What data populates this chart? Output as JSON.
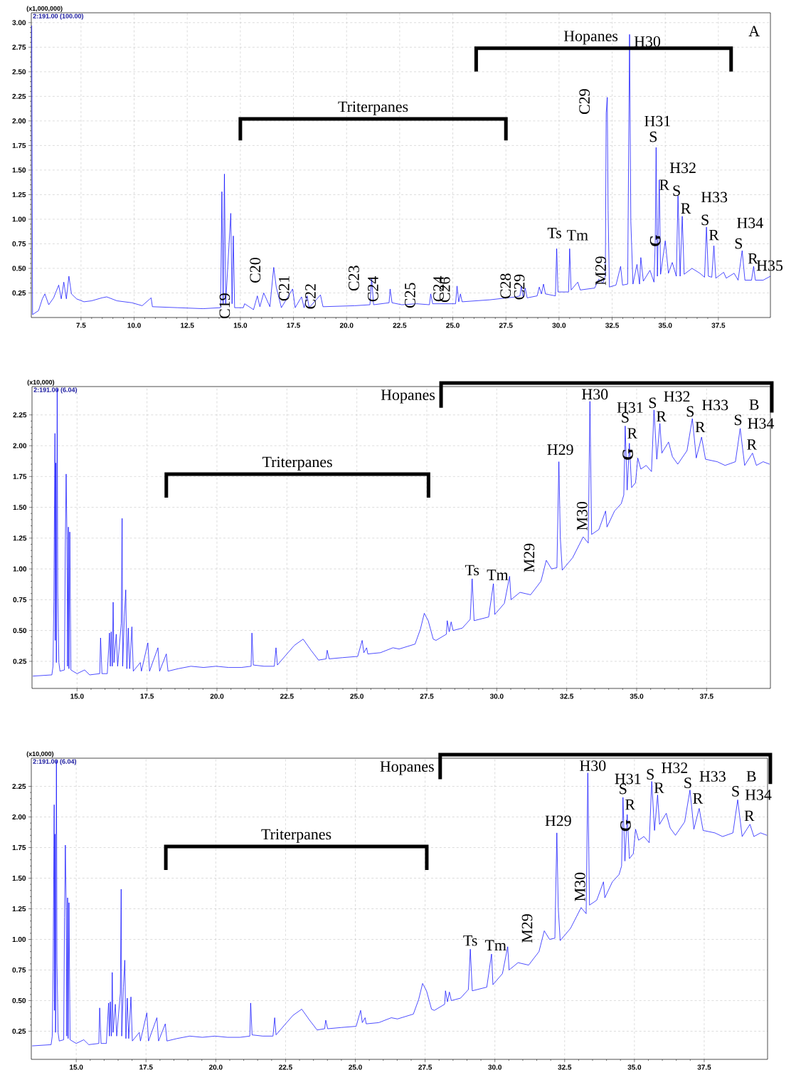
{
  "chart_data": [
    {
      "type": "line",
      "xlim": [
        5.16,
        39.95
      ],
      "ylim": [
        0.0,
        3.1
      ],
      "grid": true,
      "xticks": [
        {
          "value": 7.5,
          "label": "7.5"
        },
        {
          "value": 10,
          "label": "10.0"
        },
        {
          "value": 12.5,
          "label": "12.5"
        },
        {
          "value": 15,
          "label": "15.0"
        },
        {
          "value": 17.5,
          "label": "17.5"
        },
        {
          "value": 20,
          "label": "20.0"
        },
        {
          "value": 22.5,
          "label": "22.5"
        },
        {
          "value": 25,
          "label": "25.0"
        },
        {
          "value": 27.5,
          "label": "27.5"
        },
        {
          "value": 30,
          "label": "30.0"
        },
        {
          "value": 32.5,
          "label": "32.5"
        },
        {
          "value": 35,
          "label": "35.0"
        },
        {
          "value": 37.5,
          "label": "37.5"
        }
      ],
      "yticks": [
        {
          "value": 0.25,
          "label": "0.25"
        },
        {
          "value": 0.5,
          "label": "0.50"
        },
        {
          "value": 0.75,
          "label": "0.75"
        },
        {
          "value": 1,
          "label": "1.00"
        },
        {
          "value": 1.25,
          "label": "1.25"
        },
        {
          "value": 1.5,
          "label": "1.50"
        },
        {
          "value": 1.75,
          "label": "1.75"
        },
        {
          "value": 2,
          "label": "2.00"
        },
        {
          "value": 2.25,
          "label": "2.25"
        },
        {
          "value": 2.5,
          "label": "2.50"
        },
        {
          "value": 2.75,
          "label": "2.75"
        },
        {
          "value": 3,
          "label": "3.00"
        }
      ],
      "series": [
        {
          "color": "#0000ff",
          "x": [
            5.18,
            5.22,
            5.5,
            5.68,
            5.8,
            5.98,
            6.21,
            6.45,
            6.57,
            6.69,
            6.81,
            6.93,
            7.05,
            7.29,
            7.64,
            8.0,
            8.48,
            8.71,
            9.19,
            9.9,
            10.38,
            10.8,
            10.86,
            12.05,
            13.24,
            14.07,
            14.13,
            14.19,
            14.25,
            14.31,
            14.55,
            14.61,
            14.67,
            14.73,
            15.14,
            15.2,
            15.62,
            15.8,
            15.92,
            16.1,
            16.39,
            16.57,
            16.69,
            16.93,
            17.46,
            17.58,
            17.88,
            18.0,
            18.14,
            18.24,
            18.77,
            18.89,
            20.38,
            21.1,
            21.18,
            21.27,
            22.0,
            22.05,
            22.14,
            22.6,
            23.3,
            23.9,
            23.96,
            24.05,
            25.13,
            25.2,
            25.28,
            25.36,
            25.44,
            26.74,
            27.98,
            28.16,
            28.22,
            28.31,
            28.41,
            28.5,
            28.97,
            29.07,
            29.17,
            29.27,
            29.36,
            29.83,
            29.89,
            29.95,
            30.45,
            30.5,
            30.57,
            30.88,
            31.0,
            31.68,
            31.87,
            32.06,
            32.18,
            32.22,
            32.27,
            32.31,
            32.37,
            32.68,
            32.9,
            32.99,
            33.23,
            33.32,
            33.38,
            33.48,
            33.67,
            33.79,
            33.85,
            33.97,
            34.28,
            34.47,
            34.53,
            34.57,
            34.63,
            34.72,
            34.78,
            35.0,
            35.15,
            35.33,
            35.52,
            35.6,
            35.7,
            35.8,
            35.89,
            36.26,
            36.63,
            36.85,
            36.94,
            37.03,
            37.19,
            37.29,
            37.38,
            37.75,
            37.87,
            38.24,
            38.43,
            38.62,
            38.75,
            39.06,
            39.16,
            39.24,
            39.61,
            39.95
          ],
          "values": [
            2.97,
            0.03,
            0.07,
            0.19,
            0.24,
            0.13,
            0.2,
            0.33,
            0.19,
            0.36,
            0.19,
            0.42,
            0.24,
            0.19,
            0.16,
            0.17,
            0.2,
            0.21,
            0.17,
            0.15,
            0.12,
            0.2,
            0.11,
            0.1,
            0.09,
            0.1,
            1.28,
            0.14,
            1.46,
            0.14,
            1.06,
            0.14,
            0.83,
            0.1,
            0.1,
            0.14,
            0.08,
            0.22,
            0.11,
            0.25,
            0.11,
            0.51,
            0.31,
            0.1,
            0.29,
            0.1,
            0.21,
            0.1,
            0.22,
            0.1,
            0.23,
            0.11,
            0.12,
            0.13,
            0.4,
            0.13,
            0.15,
            0.29,
            0.15,
            0.13,
            0.14,
            0.13,
            0.24,
            0.14,
            0.14,
            0.32,
            0.16,
            0.24,
            0.16,
            0.18,
            0.21,
            0.22,
            0.32,
            0.21,
            0.3,
            0.2,
            0.22,
            0.31,
            0.24,
            0.34,
            0.24,
            0.22,
            0.7,
            0.26,
            0.26,
            0.7,
            0.28,
            0.36,
            0.28,
            0.3,
            0.39,
            0.35,
            0.42,
            2.08,
            2.24,
            1.09,
            0.31,
            0.33,
            0.52,
            0.33,
            0.34,
            2.88,
            0.98,
            0.34,
            0.54,
            0.34,
            0.61,
            0.37,
            0.48,
            0.36,
            0.78,
            1.73,
            0.42,
            1.4,
            0.44,
            0.78,
            0.45,
            0.56,
            0.42,
            1.24,
            0.42,
            1.03,
            0.44,
            0.5,
            0.45,
            0.41,
            0.92,
            0.42,
            0.41,
            0.73,
            0.4,
            0.46,
            0.4,
            0.45,
            0.38,
            0.68,
            0.38,
            0.38,
            0.52,
            0.38,
            0.38,
            0.42
          ]
        }
      ],
      "annotations": [
        "(x1,000,000)",
        "2:191.00 (100.00)",
        "A",
        {
          "text": "C19",
          "x": 15.2,
          "y": 0.14
        },
        {
          "text": "C20",
          "x": 16.57,
          "y": 0.51
        },
        {
          "text": "C21",
          "x": 17.46,
          "y": 0.29
        },
        {
          "text": "C22",
          "x": 18.77,
          "y": 0.23
        },
        {
          "text": "C23",
          "x": 21.18,
          "y": 0.4
        },
        {
          "text": "C24",
          "x": 22.05,
          "y": 0.29
        },
        {
          "text": "C25",
          "x": 23.96,
          "y": 0.24
        },
        {
          "text": "C24",
          "x": 25.2,
          "y": 0.32
        },
        {
          "text": "C26",
          "x": 25.36,
          "y": 0.24
        },
        {
          "text": "C28",
          "x": 28.22,
          "y": 0.32
        },
        {
          "text": "C29",
          "x": 29.07,
          "y": 0.31
        },
        {
          "text": "Ts",
          "x": 29.89,
          "y": 0.7
        },
        {
          "text": "Tm",
          "x": 30.5,
          "y": 0.7
        },
        {
          "text": "C29",
          "x": 32.27,
          "y": 2.24
        },
        {
          "text": "M29",
          "x": 32.9,
          "y": 0.52
        },
        {
          "text": "H30",
          "x": 33.32,
          "y": 2.88
        },
        {
          "text": "H31",
          "x": 34.57,
          "y": 1.73
        },
        {
          "text": "S",
          "x": 34.57,
          "y": 1.73
        },
        {
          "text": "R",
          "x": 34.72,
          "y": 1.4
        },
        {
          "text": "G",
          "x": 35.0,
          "y": 0.78
        },
        {
          "text": "H32",
          "x": 35.6,
          "y": 1.24
        },
        {
          "text": "S",
          "x": 35.6,
          "y": 1.24
        },
        {
          "text": "R",
          "x": 35.8,
          "y": 1.03
        },
        {
          "text": "H33",
          "x": 36.94,
          "y": 0.92
        },
        {
          "text": "S",
          "x": 36.94,
          "y": 0.92
        },
        {
          "text": "R",
          "x": 37.29,
          "y": 0.73
        },
        {
          "text": "H34",
          "x": 38.62,
          "y": 0.68
        },
        {
          "text": "S",
          "x": 38.62,
          "y": 0.68
        },
        {
          "text": "R",
          "x": 39.16,
          "y": 0.52
        },
        {
          "text": "H35",
          "x": 39.95,
          "y": 0.42
        },
        "Triterpanes",
        "Hopanes"
      ]
    },
    {
      "type": "line",
      "xlim": [
        13.39,
        39.78
      ],
      "ylim": [
        0.03,
        2.48
      ],
      "grid": true,
      "xticks": [
        {
          "value": 15,
          "label": "15.0"
        },
        {
          "value": 17.5,
          "label": "17.5"
        },
        {
          "value": 20,
          "label": "20.0"
        },
        {
          "value": 22.5,
          "label": "22.5"
        },
        {
          "value": 25,
          "label": "25.0"
        },
        {
          "value": 27.5,
          "label": "27.5"
        },
        {
          "value": 30,
          "label": "30.0"
        },
        {
          "value": 32.5,
          "label": "32.5"
        },
        {
          "value": 35,
          "label": "35.0"
        },
        {
          "value": 37.5,
          "label": "37.5"
        }
      ],
      "yticks": [
        {
          "value": 0.25,
          "label": "0.25"
        },
        {
          "value": 0.5,
          "label": "0.50"
        },
        {
          "value": 0.75,
          "label": "0.75"
        },
        {
          "value": 1,
          "label": "1.00"
        },
        {
          "value": 1.25,
          "label": "1.25"
        },
        {
          "value": 1.5,
          "label": "1.50"
        },
        {
          "value": 1.75,
          "label": "1.75"
        },
        {
          "value": 2,
          "label": "2.00"
        },
        {
          "value": 2.25,
          "label": "2.25"
        }
      ],
      "series": [
        {
          "color": "#0000ff",
          "x": [
            13.42,
            14.1,
            14.14,
            14.17,
            14.21,
            14.22,
            14.24,
            14.26,
            14.29,
            14.31,
            14.35,
            14.39,
            14.55,
            14.58,
            14.61,
            14.64,
            14.66,
            14.69,
            14.71,
            14.74,
            14.78,
            15.0,
            15.27,
            15.45,
            15.81,
            15.84,
            15.89,
            16.08,
            16.16,
            16.19,
            16.22,
            16.26,
            16.29,
            16.32,
            16.4,
            16.45,
            16.58,
            16.61,
            16.63,
            16.69,
            16.74,
            16.78,
            16.83,
            16.88,
            16.96,
            17.01,
            17.26,
            17.3,
            17.53,
            17.59,
            17.89,
            17.95,
            18.19,
            18.25,
            18.61,
            19.07,
            19.52,
            19.97,
            20.42,
            20.87,
            21.22,
            21.25,
            21.3,
            21.68,
            22.05,
            22.11,
            22.16,
            22.5,
            22.77,
            23.08,
            23.36,
            23.63,
            23.9,
            23.94,
            24.01,
            24.49,
            25.03,
            25.19,
            25.25,
            25.35,
            25.39,
            25.84,
            26.29,
            26.51,
            27.08,
            27.27,
            27.41,
            27.55,
            27.73,
            27.83,
            28.2,
            28.23,
            28.3,
            28.37,
            28.44,
            28.77,
            29.05,
            29.12,
            29.19,
            29.71,
            29.88,
            29.93,
            30.27,
            30.46,
            30.51,
            30.83,
            31.21,
            31.58,
            31.77,
            31.96,
            32.15,
            32.22,
            32.27,
            32.34,
            32.71,
            33.09,
            33.27,
            33.33,
            33.39,
            33.65,
            33.89,
            33.94,
            34.21,
            34.45,
            34.54,
            34.59,
            34.66,
            34.74,
            34.82,
            34.96,
            35.04,
            35.15,
            35.34,
            35.53,
            35.62,
            35.72,
            35.83,
            35.9,
            36.14,
            36.28,
            36.47,
            36.8,
            36.99,
            37.13,
            37.32,
            37.46,
            37.88,
            38.16,
            38.53,
            38.7,
            38.86,
            39.14,
            39.28,
            39.52,
            39.75
          ],
          "values": [
            0.13,
            0.14,
            0.21,
            0.73,
            2.1,
            0.42,
            1.86,
            0.24,
            2.46,
            0.81,
            0.24,
            0.17,
            0.18,
            1.18,
            1.77,
            1.26,
            0.21,
            1.34,
            0.19,
            1.3,
            0.18,
            0.15,
            0.18,
            0.14,
            0.15,
            0.44,
            0.15,
            0.15,
            0.48,
            0.21,
            0.49,
            0.21,
            0.73,
            0.24,
            0.47,
            0.21,
            0.56,
            1.41,
            0.21,
            0.61,
            0.83,
            0.19,
            0.52,
            0.19,
            0.53,
            0.17,
            0.24,
            0.17,
            0.4,
            0.17,
            0.36,
            0.17,
            0.31,
            0.17,
            0.19,
            0.21,
            0.2,
            0.21,
            0.2,
            0.2,
            0.21,
            0.48,
            0.22,
            0.21,
            0.21,
            0.36,
            0.22,
            0.31,
            0.38,
            0.43,
            0.34,
            0.26,
            0.27,
            0.34,
            0.27,
            0.28,
            0.29,
            0.42,
            0.32,
            0.36,
            0.31,
            0.32,
            0.36,
            0.35,
            0.39,
            0.51,
            0.64,
            0.58,
            0.43,
            0.42,
            0.47,
            0.58,
            0.49,
            0.57,
            0.5,
            0.52,
            0.59,
            0.92,
            0.58,
            0.61,
            0.88,
            0.63,
            0.72,
            0.94,
            0.75,
            0.81,
            0.79,
            0.9,
            1.07,
            1.0,
            1.01,
            1.87,
            1.26,
            0.99,
            1.09,
            1.26,
            1.21,
            2.36,
            1.28,
            1.32,
            1.47,
            1.34,
            1.47,
            1.53,
            1.6,
            2.16,
            1.64,
            2.02,
            1.66,
            1.7,
            1.9,
            1.81,
            1.84,
            1.79,
            2.29,
            1.89,
            2.18,
            1.94,
            2.03,
            1.91,
            1.85,
            1.96,
            2.22,
            1.9,
            2.07,
            1.89,
            1.87,
            1.84,
            1.87,
            2.14,
            1.84,
            1.94,
            1.84,
            1.87,
            1.85
          ]
        }
      ],
      "annotations": [
        "(x10,000)",
        "2:191.00 (6.04)",
        "B",
        {
          "text": "H29",
          "x": 32.22,
          "y": 1.87
        },
        {
          "text": "M29",
          "x": 32.71,
          "y": 1.09
        },
        {
          "text": "H30",
          "x": 33.33,
          "y": 2.36
        },
        {
          "text": "M30",
          "x": 33.89,
          "y": 1.47
        },
        {
          "text": "Ts",
          "x": 29.12,
          "y": 0.92
        },
        {
          "text": "Tm",
          "x": 30.46,
          "y": 0.94
        },
        {
          "text": "H31",
          "x": 34.59,
          "y": 2.16
        },
        {
          "text": "S",
          "x": 34.59,
          "y": 2.16
        },
        {
          "text": "R",
          "x": 34.74,
          "y": 2.02
        },
        {
          "text": "G",
          "x": 35.04,
          "y": 1.9
        },
        {
          "text": "S",
          "x": 35.62,
          "y": 2.29
        },
        {
          "text": "H32",
          "x": 35.83,
          "y": 2.18
        },
        {
          "text": "R",
          "x": 35.83,
          "y": 2.18
        },
        {
          "text": "S",
          "x": 36.99,
          "y": 2.22
        },
        {
          "text": "H33",
          "x": 37.32,
          "y": 2.07
        },
        {
          "text": "R",
          "x": 37.32,
          "y": 2.07
        },
        {
          "text": "S",
          "x": 38.7,
          "y": 2.14
        },
        {
          "text": "H34",
          "x": 38.7,
          "y": 2.14
        },
        {
          "text": "R",
          "x": 39.14,
          "y": 1.94
        },
        "Triterpanes",
        "Hopanes"
      ]
    },
    {
      "type": "line",
      "xlim": [
        13.39,
        39.77
      ],
      "ylim": [
        0.02,
        2.48
      ],
      "grid": true,
      "xticks": [
        {
          "value": 15,
          "label": "15.0"
        },
        {
          "value": 17.5,
          "label": "17.5"
        },
        {
          "value": 20,
          "label": "20.0"
        },
        {
          "value": 22.5,
          "label": "22.5"
        },
        {
          "value": 25,
          "label": "25.0"
        },
        {
          "value": 27.5,
          "label": "27.5"
        },
        {
          "value": 30,
          "label": "30.0"
        },
        {
          "value": 32.5,
          "label": "32.5"
        },
        {
          "value": 35,
          "label": "35.0"
        },
        {
          "value": 37.5,
          "label": "37.5"
        }
      ],
      "yticks": [
        {
          "value": 0.25,
          "label": "0.25"
        },
        {
          "value": 0.5,
          "label": "0.50"
        },
        {
          "value": 0.75,
          "label": "0.75"
        },
        {
          "value": 1,
          "label": "1.00"
        },
        {
          "value": 1.25,
          "label": "1.25"
        },
        {
          "value": 1.5,
          "label": "1.50"
        },
        {
          "value": 1.75,
          "label": "1.75"
        },
        {
          "value": 2,
          "label": "2.00"
        },
        {
          "value": 2.25,
          "label": "2.25"
        }
      ],
      "series": [
        {
          "color": "#0000ff",
          "x": [
            13.42,
            14.1,
            14.14,
            14.17,
            14.21,
            14.22,
            14.24,
            14.26,
            14.29,
            14.31,
            14.35,
            14.39,
            14.55,
            14.58,
            14.61,
            14.64,
            14.66,
            14.69,
            14.71,
            14.74,
            14.78,
            15.0,
            15.27,
            15.45,
            15.81,
            15.84,
            15.89,
            16.08,
            16.16,
            16.19,
            16.22,
            16.26,
            16.29,
            16.32,
            16.4,
            16.45,
            16.58,
            16.61,
            16.63,
            16.69,
            16.74,
            16.78,
            16.83,
            16.88,
            16.96,
            17.01,
            17.26,
            17.3,
            17.53,
            17.59,
            17.89,
            17.95,
            18.19,
            18.25,
            18.61,
            19.07,
            19.52,
            19.97,
            20.42,
            20.87,
            21.22,
            21.25,
            21.3,
            21.68,
            22.05,
            22.11,
            22.16,
            22.5,
            22.77,
            23.08,
            23.36,
            23.63,
            23.9,
            23.94,
            24.01,
            24.49,
            25.03,
            25.19,
            25.25,
            25.35,
            25.39,
            25.84,
            26.29,
            26.51,
            27.08,
            27.27,
            27.41,
            27.55,
            27.73,
            27.83,
            28.2,
            28.23,
            28.3,
            28.37,
            28.44,
            28.77,
            29.05,
            29.12,
            29.19,
            29.71,
            29.88,
            29.93,
            30.27,
            30.46,
            30.51,
            30.83,
            31.21,
            31.58,
            31.77,
            31.96,
            32.15,
            32.22,
            32.27,
            32.34,
            32.71,
            33.09,
            33.27,
            33.33,
            33.39,
            33.65,
            33.89,
            33.94,
            34.21,
            34.45,
            34.54,
            34.59,
            34.66,
            34.74,
            34.82,
            34.96,
            35.04,
            35.15,
            35.34,
            35.53,
            35.62,
            35.72,
            35.83,
            35.9,
            36.14,
            36.28,
            36.47,
            36.8,
            36.99,
            37.13,
            37.32,
            37.46,
            37.88,
            38.16,
            38.53,
            38.7,
            38.86,
            39.14,
            39.28,
            39.52,
            39.75
          ],
          "values": [
            0.13,
            0.14,
            0.21,
            0.73,
            2.1,
            0.42,
            1.86,
            0.24,
            2.46,
            0.81,
            0.24,
            0.17,
            0.18,
            1.18,
            1.77,
            1.26,
            0.21,
            1.34,
            0.19,
            1.3,
            0.18,
            0.15,
            0.18,
            0.14,
            0.15,
            0.44,
            0.15,
            0.15,
            0.48,
            0.21,
            0.49,
            0.21,
            0.73,
            0.24,
            0.47,
            0.21,
            0.56,
            1.41,
            0.21,
            0.61,
            0.83,
            0.19,
            0.52,
            0.19,
            0.53,
            0.17,
            0.24,
            0.17,
            0.4,
            0.17,
            0.36,
            0.17,
            0.31,
            0.17,
            0.19,
            0.21,
            0.2,
            0.21,
            0.2,
            0.2,
            0.21,
            0.48,
            0.22,
            0.21,
            0.21,
            0.36,
            0.22,
            0.31,
            0.38,
            0.43,
            0.34,
            0.26,
            0.27,
            0.34,
            0.27,
            0.28,
            0.29,
            0.42,
            0.32,
            0.36,
            0.31,
            0.32,
            0.36,
            0.35,
            0.39,
            0.51,
            0.64,
            0.58,
            0.43,
            0.42,
            0.47,
            0.58,
            0.49,
            0.57,
            0.5,
            0.52,
            0.59,
            0.92,
            0.58,
            0.61,
            0.88,
            0.63,
            0.72,
            0.94,
            0.75,
            0.81,
            0.79,
            0.9,
            1.07,
            1.0,
            1.01,
            1.87,
            1.26,
            0.99,
            1.09,
            1.26,
            1.21,
            2.36,
            1.28,
            1.32,
            1.47,
            1.34,
            1.47,
            1.53,
            1.6,
            2.16,
            1.64,
            2.02,
            1.66,
            1.7,
            1.9,
            1.81,
            1.84,
            1.79,
            2.29,
            1.89,
            2.18,
            1.94,
            2.03,
            1.91,
            1.85,
            1.96,
            2.22,
            1.9,
            2.07,
            1.89,
            1.87,
            1.84,
            1.87,
            2.14,
            1.84,
            1.94,
            1.84,
            1.87,
            1.85
          ]
        }
      ],
      "annotations": [
        "(x10,000)",
        "2:191.00 (6.04)",
        "B",
        {
          "text": "H29",
          "x": 32.22,
          "y": 1.87
        },
        {
          "text": "M29",
          "x": 32.71,
          "y": 1.09
        },
        {
          "text": "H30",
          "x": 33.33,
          "y": 2.36
        },
        {
          "text": "M30",
          "x": 33.89,
          "y": 1.47
        },
        {
          "text": "Ts",
          "x": 29.12,
          "y": 0.92
        },
        {
          "text": "Tm",
          "x": 30.46,
          "y": 0.94
        },
        {
          "text": "H31",
          "x": 34.59,
          "y": 2.16
        },
        {
          "text": "S",
          "x": 34.59,
          "y": 2.16
        },
        {
          "text": "R",
          "x": 34.74,
          "y": 2.02
        },
        {
          "text": "G",
          "x": 35.04,
          "y": 1.9
        },
        {
          "text": "S",
          "x": 35.62,
          "y": 2.29
        },
        {
          "text": "H32",
          "x": 35.83,
          "y": 2.18
        },
        {
          "text": "R",
          "x": 35.83,
          "y": 2.18
        },
        {
          "text": "S",
          "x": 36.99,
          "y": 2.22
        },
        {
          "text": "H33",
          "x": 37.32,
          "y": 2.07
        },
        {
          "text": "R",
          "x": 37.32,
          "y": 2.07
        },
        {
          "text": "S",
          "x": 38.7,
          "y": 2.14
        },
        {
          "text": "H34",
          "x": 38.7,
          "y": 2.14
        },
        {
          "text": "R",
          "x": 39.14,
          "y": 1.94
        },
        "Triterpanes",
        "Hopanes"
      ]
    }
  ]
}
